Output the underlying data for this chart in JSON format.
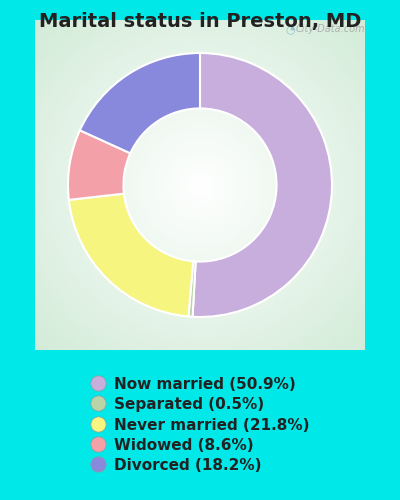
{
  "title": "Marital status in Preston, MD",
  "slices": [
    {
      "label": "Now married (50.9%)",
      "value": 50.9,
      "color": "#C8AEDD"
    },
    {
      "label": "Separated (0.5%)",
      "value": 0.5,
      "color": "#B8D4A8"
    },
    {
      "label": "Never married (21.8%)",
      "value": 21.8,
      "color": "#F5F580"
    },
    {
      "label": "Widowed (8.6%)",
      "value": 8.6,
      "color": "#F4A0A8"
    },
    {
      "label": "Divorced (18.2%)",
      "value": 18.2,
      "color": "#8888DD"
    }
  ],
  "background_color": "#00E8E8",
  "title_fontsize": 14,
  "legend_fontsize": 11,
  "watermark": "City-Data.com",
  "donut_width": 0.42,
  "start_angle": 90,
  "title_color": "#222222",
  "legend_text_color": "#222222"
}
